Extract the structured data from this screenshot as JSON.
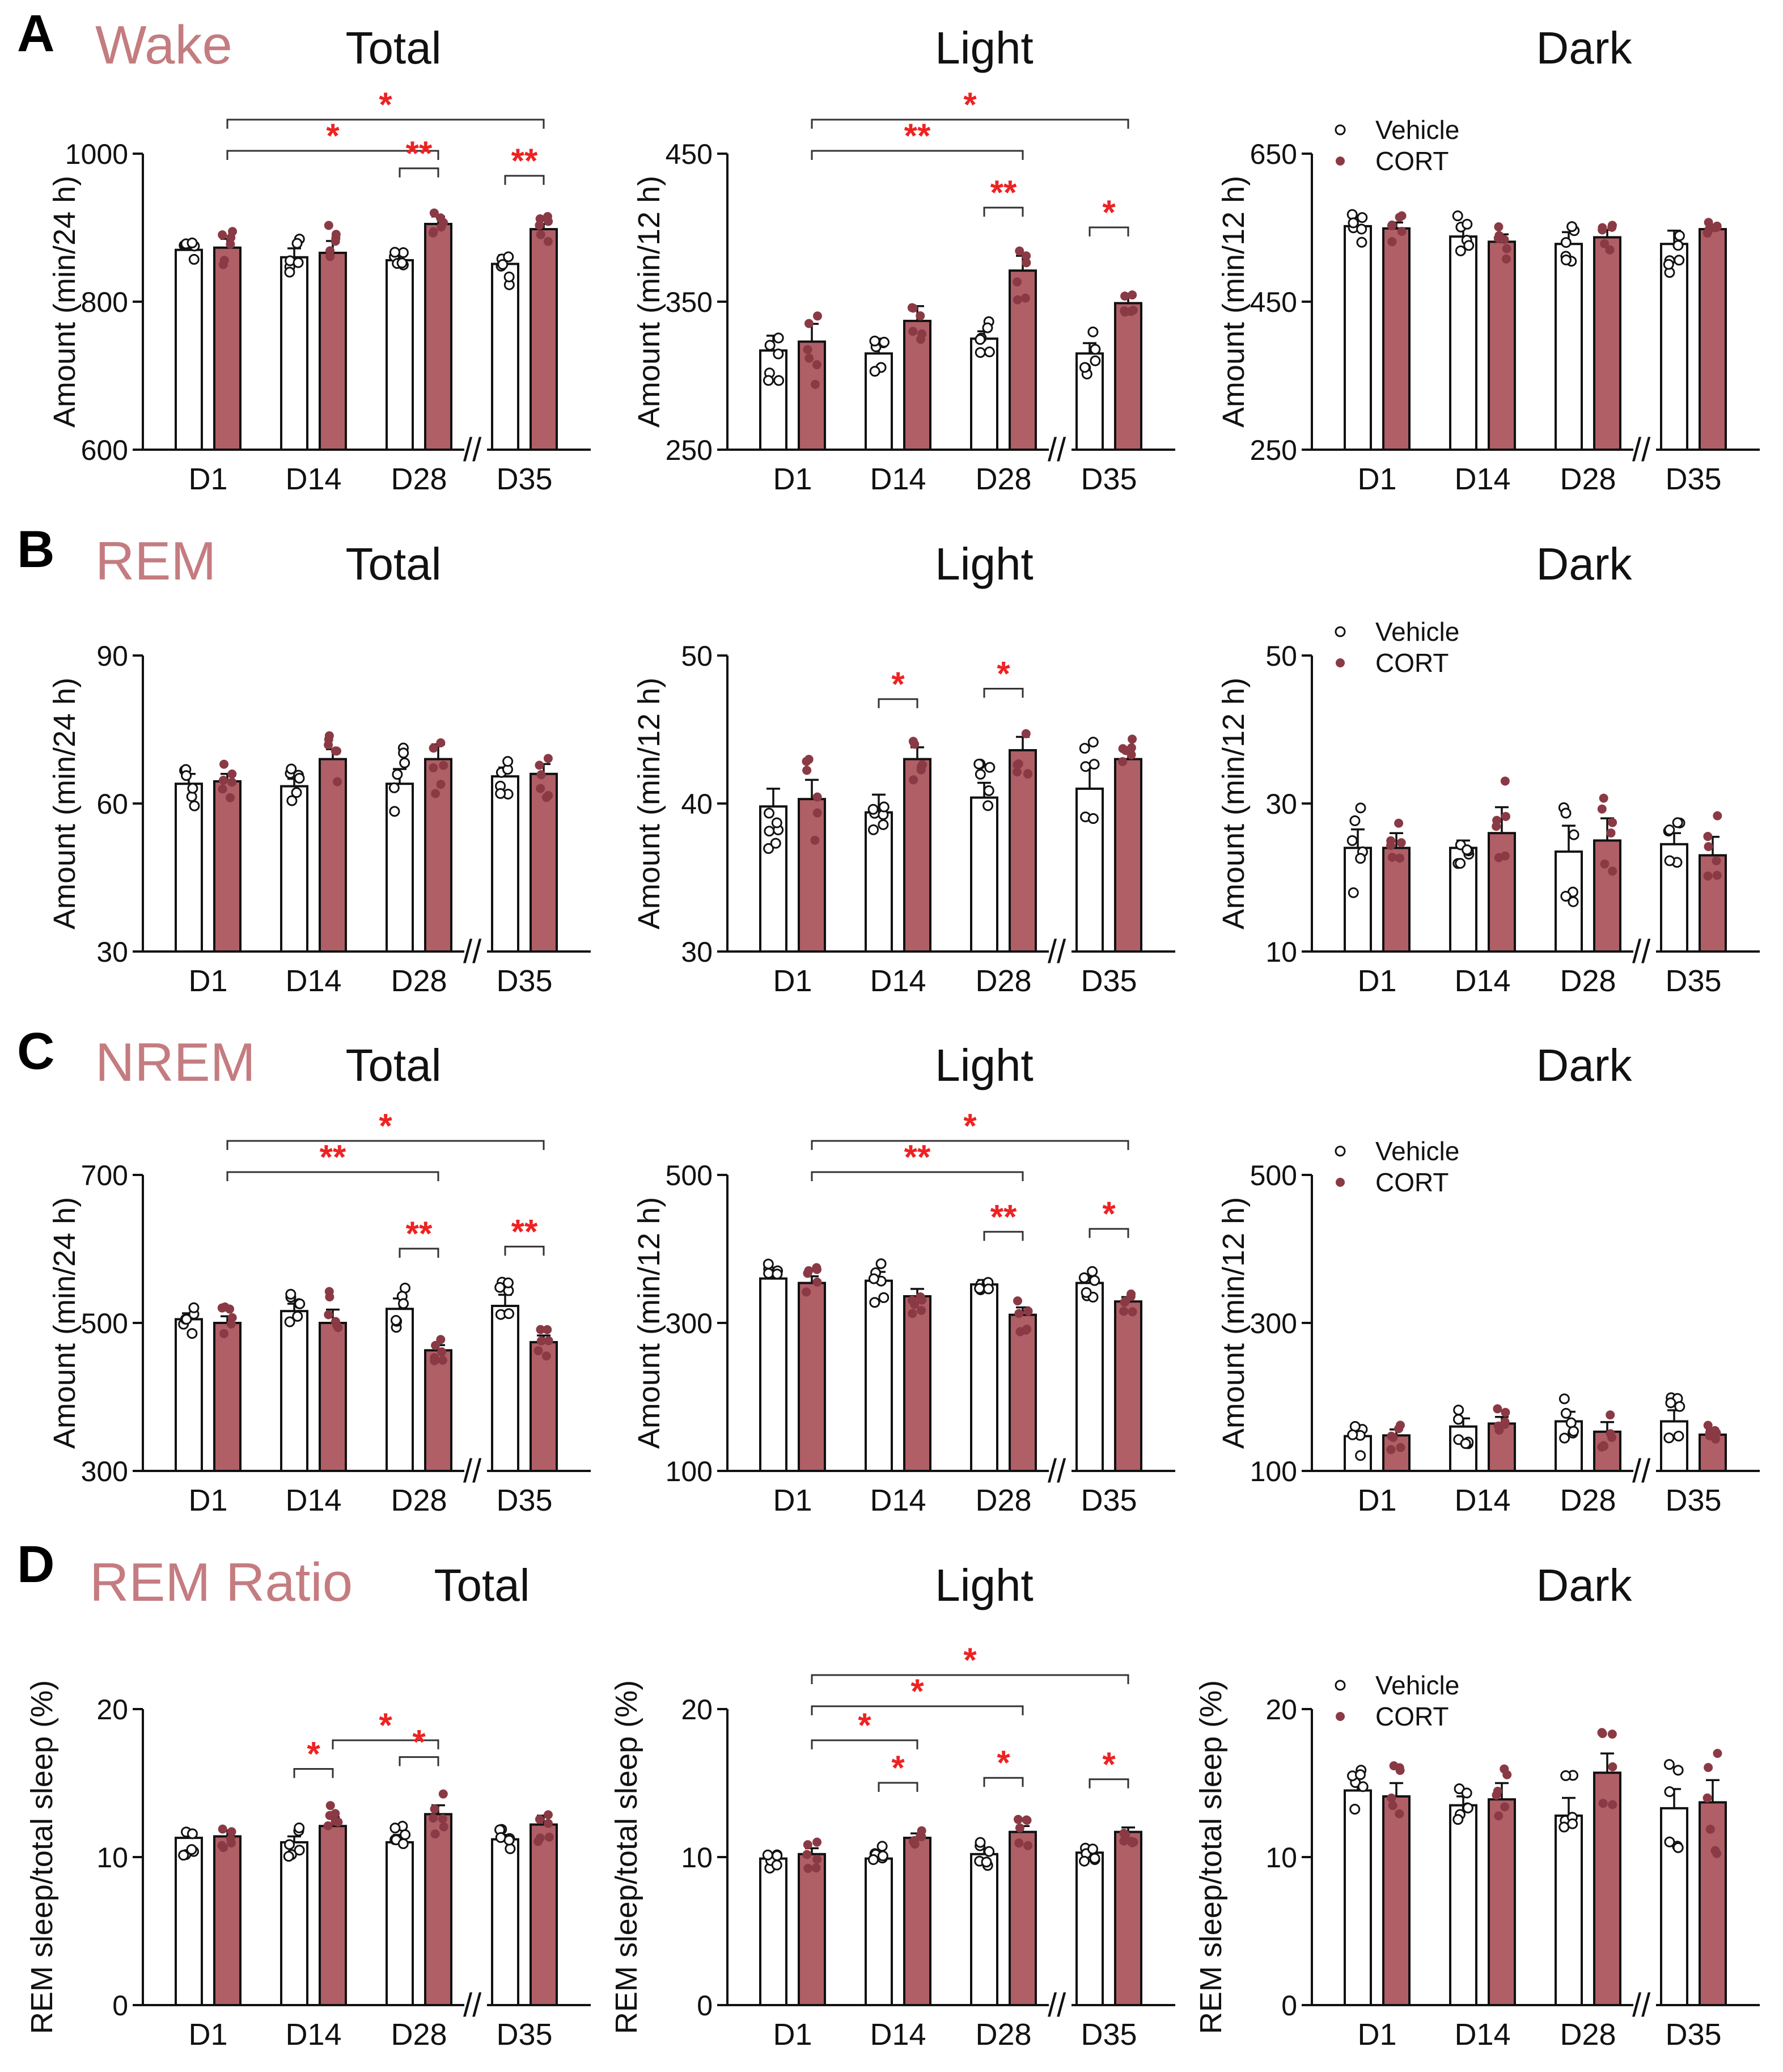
{
  "figure": {
    "categories": [
      "D1",
      "D14",
      "D28",
      "D35"
    ],
    "legend": {
      "vehicle": "Vehicle",
      "cort": "CORT"
    },
    "column_titles": [
      "Total",
      "Light",
      "Dark"
    ],
    "colors": {
      "cort": "#b05f66",
      "cort_dot": "#8a3a44",
      "title": "#c47c80",
      "star": "#ee2222",
      "axis": "#111111"
    },
    "axis_break": "//",
    "rows": [
      {
        "letter": "A",
        "name": "Wake"
      },
      {
        "letter": "B",
        "name": "REM"
      },
      {
        "letter": "C",
        "name": "NREM"
      },
      {
        "letter": "D",
        "name": "REM Ratio"
      }
    ]
  },
  "chart_data": [
    {
      "type": "bar",
      "row": 0,
      "col": 0,
      "title": "Total",
      "ylabel": "Amount (min/24 h)",
      "ylim": [
        600,
        1000
      ],
      "yticks": [
        600,
        800,
        1000
      ],
      "categories": [
        "D1",
        "D14",
        "D28",
        "D35"
      ],
      "series": [
        {
          "name": "Vehicle",
          "values": [
            870,
            860,
            856,
            851
          ],
          "sem": [
            8,
            12,
            11,
            12
          ]
        },
        {
          "name": "CORT",
          "values": [
            873,
            866,
            905,
            898
          ],
          "sem": [
            12,
            16,
            10,
            7
          ]
        }
      ],
      "significance": [
        {
          "from": 0,
          "to": 3,
          "label": "*"
        },
        {
          "from": 0,
          "to": 2,
          "label": "*"
        },
        {
          "from": 2,
          "to": 2,
          "label": "**"
        },
        {
          "from": 3,
          "to": 3,
          "label": "**"
        }
      ]
    },
    {
      "type": "bar",
      "row": 0,
      "col": 1,
      "title": "Light",
      "ylabel": "Amount (min/12 h)",
      "ylim": [
        250,
        450
      ],
      "yticks": [
        250,
        350,
        450
      ],
      "categories": [
        "D1",
        "D14",
        "D28",
        "D35"
      ],
      "series": [
        {
          "name": "Vehicle",
          "values": [
            317,
            315,
            325,
            315
          ],
          "sem": [
            10,
            10,
            5,
            7
          ]
        },
        {
          "name": "CORT",
          "values": [
            323,
            337,
            371,
            349
          ],
          "sem": [
            12,
            10,
            10,
            5
          ]
        }
      ],
      "significance": [
        {
          "from": 0,
          "to": 3,
          "label": "*"
        },
        {
          "from": 0,
          "to": 2,
          "label": "**"
        },
        {
          "from": 2,
          "to": 2,
          "label": "**"
        },
        {
          "from": 3,
          "to": 3,
          "label": "*"
        }
      ]
    },
    {
      "type": "bar",
      "row": 0,
      "col": 2,
      "title": "Dark",
      "ylabel": "Amount (min/12 h)",
      "ylim": [
        250,
        650
      ],
      "yticks": [
        250,
        450,
        650
      ],
      "categories": [
        "D1",
        "D14",
        "D28",
        "D35"
      ],
      "series": [
        {
          "name": "Vehicle",
          "values": [
            552,
            538,
            528,
            528
          ],
          "sem": [
            12,
            12,
            16,
            18
          ]
        },
        {
          "name": "CORT",
          "values": [
            549,
            531,
            537,
            548
          ],
          "sem": [
            8,
            10,
            10,
            6
          ]
        }
      ],
      "significance": []
    },
    {
      "type": "bar",
      "row": 1,
      "col": 0,
      "title": "Total",
      "ylabel": "Amount (min/24 h)",
      "ylim": [
        30,
        90
      ],
      "yticks": [
        30,
        60,
        90
      ],
      "categories": [
        "D1",
        "D14",
        "D28",
        "D35"
      ],
      "series": [
        {
          "name": "Vehicle",
          "values": [
            64,
            63.5,
            64,
            65.5
          ],
          "sem": [
            2,
            1.5,
            3,
            1.8
          ]
        },
        {
          "name": "CORT",
          "values": [
            64.5,
            69,
            69,
            66
          ],
          "sem": [
            1.5,
            2,
            3,
            2
          ]
        }
      ],
      "significance": []
    },
    {
      "type": "bar",
      "row": 1,
      "col": 1,
      "title": "Light",
      "ylabel": "Amount (min/12 h)",
      "ylim": [
        30,
        50
      ],
      "yticks": [
        30,
        40,
        50
      ],
      "categories": [
        "D1",
        "D14",
        "D28",
        "D35"
      ],
      "series": [
        {
          "name": "Vehicle",
          "values": [
            39.8,
            39.4,
            40.4,
            41
          ],
          "sem": [
            1.2,
            1.2,
            1,
            1.4
          ]
        },
        {
          "name": "CORT",
          "values": [
            40.3,
            43,
            43.6,
            43
          ],
          "sem": [
            1.3,
            0.8,
            0.9,
            0.6
          ]
        }
      ],
      "significance": [
        {
          "from": 1,
          "to": 1,
          "label": "*"
        },
        {
          "from": 2,
          "to": 2,
          "label": "*"
        }
      ]
    },
    {
      "type": "bar",
      "row": 1,
      "col": 2,
      "title": "Dark",
      "ylabel": "Amount (min/12 h)",
      "ylim": [
        10,
        50
      ],
      "yticks": [
        10,
        30,
        50
      ],
      "categories": [
        "D1",
        "D14",
        "D28",
        "D35"
      ],
      "series": [
        {
          "name": "Vehicle",
          "values": [
            24,
            24,
            23.5,
            24.5
          ],
          "sem": [
            2.5,
            1,
            3.5,
            1.5
          ]
        },
        {
          "name": "CORT",
          "values": [
            24,
            26,
            25,
            23
          ],
          "sem": [
            2,
            3.5,
            3,
            2.5
          ]
        }
      ],
      "significance": []
    },
    {
      "type": "bar",
      "row": 2,
      "col": 0,
      "title": "Total",
      "ylabel": "Amount (min/24 h)",
      "ylim": [
        300,
        700
      ],
      "yticks": [
        300,
        500,
        700
      ],
      "categories": [
        "D1",
        "D14",
        "D28",
        "D35"
      ],
      "series": [
        {
          "name": "Vehicle",
          "values": [
            505,
            516,
            519,
            523
          ],
          "sem": [
            8,
            10,
            14,
            15
          ]
        },
        {
          "name": "CORT",
          "values": [
            500,
            500,
            463,
            474
          ],
          "sem": [
            9,
            18,
            7,
            9
          ]
        }
      ],
      "significance": [
        {
          "from": 0,
          "to": 3,
          "label": "*"
        },
        {
          "from": 0,
          "to": 2,
          "label": "**"
        },
        {
          "from": 2,
          "to": 2,
          "label": "**"
        },
        {
          "from": 3,
          "to": 3,
          "label": "**"
        }
      ]
    },
    {
      "type": "bar",
      "row": 2,
      "col": 1,
      "title": "Light",
      "ylabel": "Amount (min/12 h)",
      "ylim": [
        100,
        500
      ],
      "yticks": [
        100,
        300,
        500
      ],
      "categories": [
        "D1",
        "D14",
        "D28",
        "D35"
      ],
      "series": [
        {
          "name": "Vehicle",
          "values": [
            360,
            357,
            352,
            354
          ],
          "sem": [
            9,
            12,
            6,
            8
          ]
        },
        {
          "name": "CORT",
          "values": [
            354,
            336,
            311,
            329
          ],
          "sem": [
            9,
            10,
            10,
            6
          ]
        }
      ],
      "significance": [
        {
          "from": 0,
          "to": 3,
          "label": "*"
        },
        {
          "from": 0,
          "to": 2,
          "label": "**"
        },
        {
          "from": 2,
          "to": 2,
          "label": "**"
        },
        {
          "from": 3,
          "to": 3,
          "label": "*"
        }
      ]
    },
    {
      "type": "bar",
      "row": 2,
      "col": 2,
      "title": "Dark",
      "ylabel": "Amount (min/12 h)",
      "ylim": [
        100,
        500
      ],
      "yticks": [
        100,
        300,
        500
      ],
      "categories": [
        "D1",
        "D14",
        "D28",
        "D35"
      ],
      "series": [
        {
          "name": "Vehicle",
          "values": [
            147,
            160,
            167,
            167
          ],
          "sem": [
            11,
            11,
            13,
            15
          ]
        },
        {
          "name": "CORT",
          "values": [
            148,
            164,
            153,
            149
          ],
          "sem": [
            8,
            9,
            13,
            6
          ]
        }
      ],
      "significance": []
    },
    {
      "type": "bar",
      "row": 3,
      "col": 0,
      "title": "Total",
      "ylabel": "REM sleep/total sleep (%)",
      "ylim": [
        0,
        20
      ],
      "yticks": [
        0,
        10,
        20
      ],
      "categories": [
        "D1",
        "D14",
        "D28",
        "D35"
      ],
      "series": [
        {
          "name": "Vehicle",
          "values": [
            11.3,
            11,
            11,
            11.2
          ],
          "sem": [
            0.5,
            0.4,
            0.5,
            0.3
          ]
        },
        {
          "name": "CORT",
          "values": [
            11.4,
            12.1,
            12.9,
            12.2
          ],
          "sem": [
            0.4,
            0.6,
            0.6,
            0.6
          ]
        }
      ],
      "significance": [
        {
          "from": 1,
          "to": 2,
          "label": "*"
        },
        {
          "from": 1,
          "to": 1,
          "label": "*"
        },
        {
          "from": 2,
          "to": 2,
          "label": "*"
        }
      ]
    },
    {
      "type": "bar",
      "row": 3,
      "col": 1,
      "title": "Light",
      "ylabel": "REM sleep/total sleep (%)",
      "ylim": [
        0,
        20
      ],
      "yticks": [
        0,
        10,
        20
      ],
      "categories": [
        "D1",
        "D14",
        "D28",
        "D35"
      ],
      "series": [
        {
          "name": "Vehicle",
          "values": [
            9.9,
            9.9,
            10.2,
            10.3
          ],
          "sem": [
            0.3,
            0.4,
            0.4,
            0.3
          ]
        },
        {
          "name": "CORT",
          "values": [
            10.2,
            11.3,
            11.7,
            11.7
          ],
          "sem": [
            0.4,
            0.3,
            0.4,
            0.3
          ]
        }
      ],
      "significance": [
        {
          "from": 0,
          "to": 3,
          "label": "*"
        },
        {
          "from": 0,
          "to": 2,
          "label": "*"
        },
        {
          "from": 0,
          "to": 1,
          "label": "*"
        },
        {
          "from": 1,
          "to": 1,
          "label": "*"
        },
        {
          "from": 2,
          "to": 2,
          "label": "*"
        },
        {
          "from": 3,
          "to": 3,
          "label": "*"
        }
      ]
    },
    {
      "type": "bar",
      "row": 3,
      "col": 2,
      "title": "Dark",
      "ylabel": "REM sleep/total sleep (%)",
      "ylim": [
        0,
        20
      ],
      "yticks": [
        0,
        10,
        20
      ],
      "categories": [
        "D1",
        "D14",
        "D28",
        "D35"
      ],
      "series": [
        {
          "name": "Vehicle",
          "values": [
            14.5,
            13.5,
            12.8,
            13.3
          ],
          "sem": [
            1.2,
            0.6,
            1.2,
            1.3
          ]
        },
        {
          "name": "CORT",
          "values": [
            14.1,
            13.9,
            15.7,
            13.7
          ],
          "sem": [
            0.9,
            1.1,
            1.3,
            1.5
          ]
        }
      ],
      "significance": []
    }
  ]
}
